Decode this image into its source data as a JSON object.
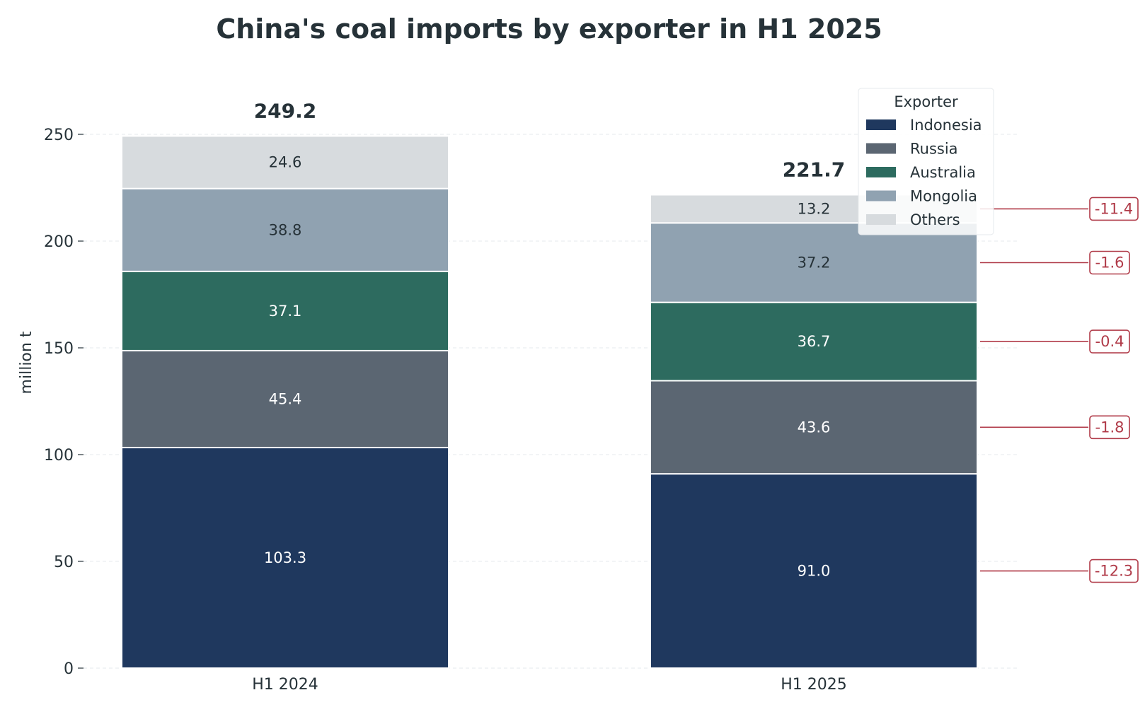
{
  "chart_data": {
    "type": "bar",
    "stacked": true,
    "title": "China's coal imports by exporter in H1 2025",
    "ylabel": "million t",
    "xlabel": "",
    "ylim": [
      0,
      250
    ],
    "yticks": [
      0,
      50,
      100,
      150,
      200,
      250
    ],
    "categories": [
      "H1 2024",
      "H1 2025"
    ],
    "series": [
      {
        "name": "Indonesia",
        "color": "#1f385e",
        "label_color": "#ffffff",
        "values": [
          103.3,
          91.0
        ],
        "labels": [
          "103.3",
          "91.0"
        ]
      },
      {
        "name": "Russia",
        "color": "#5b6672",
        "label_color": "#ffffff",
        "values": [
          45.4,
          43.6
        ],
        "labels": [
          "45.4",
          "43.6"
        ]
      },
      {
        "name": "Australia",
        "color": "#2d6b5f",
        "label_color": "#ffffff",
        "values": [
          37.1,
          36.7
        ],
        "labels": [
          "37.1",
          "36.7"
        ]
      },
      {
        "name": "Mongolia",
        "color": "#90a2b1",
        "label_color": "#263238",
        "values": [
          38.8,
          37.2
        ],
        "labels": [
          "38.8",
          "37.2"
        ]
      },
      {
        "name": "Others",
        "color": "#d7dbde",
        "label_color": "#263238",
        "values": [
          24.6,
          13.2
        ],
        "labels": [
          "24.6",
          "13.2"
        ]
      }
    ],
    "totals": [
      249.2,
      221.7
    ],
    "total_labels": [
      "249.2",
      "221.7"
    ],
    "changes": [
      {
        "series": "Indonesia",
        "value": -12.3,
        "label": "-12.3"
      },
      {
        "series": "Russia",
        "value": -1.8,
        "label": "-1.8"
      },
      {
        "series": "Australia",
        "value": -0.4,
        "label": "-0.4"
      },
      {
        "series": "Mongolia",
        "value": -1.6,
        "label": "-1.6"
      },
      {
        "series": "Others",
        "value": -11.4,
        "label": "-11.4"
      }
    ],
    "change_color": "#b03a48",
    "legend": {
      "title": "Exporter",
      "placement": "top-right"
    },
    "grid": true
  }
}
